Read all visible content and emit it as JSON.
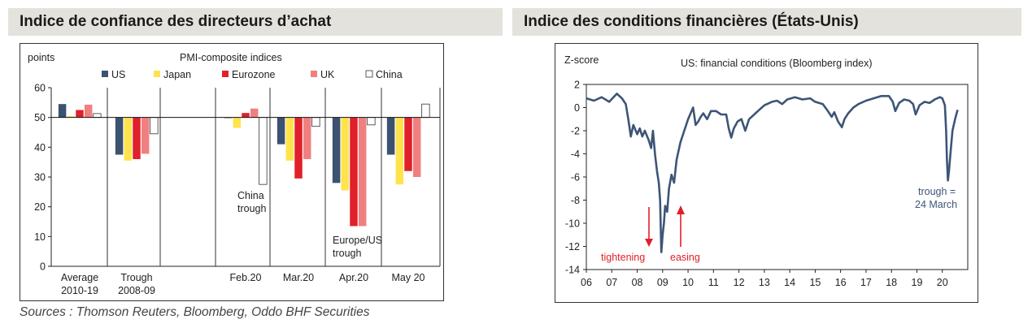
{
  "headers": {
    "left": "Indice de confiance des directeurs d’achat",
    "right": "Indice des conditions financières (États-Unis)"
  },
  "sources": "Sources : Thomson Reuters, Bloomberg, Oddo BHF Securities",
  "chart_data": [
    {
      "type": "bar",
      "title": "PMI-composite indices",
      "ylabel": "points",
      "ylim": [
        0,
        60
      ],
      "yticks": [
        0,
        10,
        20,
        30,
        40,
        50,
        60
      ],
      "baseline": 50,
      "categories": [
        "Average 2010-19",
        "Trough 2008-09",
        "Feb.20",
        "Mar.20",
        "Apr.20",
        "May 20"
      ],
      "category_lines": [
        [
          "Average",
          "2010-19"
        ],
        [
          "Trough",
          "2008-09"
        ],
        [
          "Feb.20"
        ],
        [
          "Mar.20"
        ],
        [
          "Apr.20"
        ],
        [
          "May 20"
        ]
      ],
      "series": [
        {
          "name": "US",
          "color": "#3b5270",
          "values": [
            54.5,
            37.5,
            49.8,
            41,
            28,
            37.5
          ]
        },
        {
          "name": "Japan",
          "color": "#ffe34d",
          "values": [
            50.5,
            35.5,
            46.5,
            35.5,
            25.5,
            27.5
          ]
        },
        {
          "name": "Eurozone",
          "color": "#e0202a",
          "values": [
            52.5,
            36,
            51.5,
            29.5,
            13.5,
            32
          ]
        },
        {
          "name": "UK",
          "color": "#f08080",
          "values": [
            54.3,
            37.8,
            53,
            36,
            13.5,
            30
          ]
        },
        {
          "name": "China",
          "color": "#ffffff",
          "values": [
            51.3,
            44.5,
            27.5,
            47,
            47.5,
            54.5
          ]
        }
      ],
      "annotations": [
        {
          "lines": [
            "China",
            "trough"
          ]
        },
        {
          "lines": [
            "Europe/US",
            "trough"
          ]
        }
      ],
      "legend_placement": "top",
      "grid": false
    },
    {
      "type": "line",
      "title": "US: financial conditions (Bloomberg index)",
      "ylabel": "Z-score",
      "ylim": [
        -14,
        2
      ],
      "yticks": [
        2,
        0,
        -2,
        -4,
        -6,
        -8,
        -10,
        -12,
        -14
      ],
      "xlim": [
        2006,
        2021
      ],
      "xticks": [
        "06",
        "07",
        "08",
        "09",
        "10",
        "11",
        "12",
        "13",
        "14",
        "15",
        "16",
        "17",
        "18",
        "19",
        "20"
      ],
      "series": [
        {
          "color": "#3d5577",
          "x": [
            2006.0,
            2006.3,
            2006.6,
            2006.9,
            2007.2,
            2007.4,
            2007.55,
            2007.65,
            2007.75,
            2007.85,
            2008.0,
            2008.1,
            2008.2,
            2008.3,
            2008.45,
            2008.55,
            2008.62,
            2008.7,
            2008.78,
            2008.85,
            2008.9,
            2008.95,
            2009.0,
            2009.05,
            2009.1,
            2009.18,
            2009.25,
            2009.35,
            2009.45,
            2009.55,
            2009.7,
            2009.85,
            2010.0,
            2010.1,
            2010.2,
            2010.3,
            2010.4,
            2010.5,
            2010.6,
            2010.75,
            2010.9,
            2011.1,
            2011.3,
            2011.5,
            2011.6,
            2011.7,
            2011.8,
            2011.95,
            2012.1,
            2012.25,
            2012.4,
            2012.6,
            2012.8,
            2013.0,
            2013.3,
            2013.5,
            2013.7,
            2013.9,
            2014.2,
            2014.5,
            2014.8,
            2015.0,
            2015.3,
            2015.5,
            2015.65,
            2015.75,
            2015.9,
            2016.05,
            2016.15,
            2016.3,
            2016.5,
            2016.7,
            2017.0,
            2017.3,
            2017.6,
            2017.9,
            2018.05,
            2018.15,
            2018.3,
            2018.5,
            2018.7,
            2018.85,
            2018.95,
            2019.1,
            2019.3,
            2019.5,
            2019.7,
            2019.9,
            2020.0,
            2020.1,
            2020.15,
            2020.18,
            2020.22,
            2020.26,
            2020.32,
            2020.4,
            2020.5,
            2020.6
          ],
          "y": [
            0.8,
            0.6,
            0.9,
            0.5,
            1.2,
            0.8,
            0.3,
            -1.0,
            -2.5,
            -1.5,
            -2.3,
            -1.8,
            -2.5,
            -2.0,
            -2.8,
            -3.5,
            -2.0,
            -4.0,
            -5.5,
            -6.5,
            -8.0,
            -12.5,
            -11.0,
            -10.0,
            -8.5,
            -9.0,
            -7.0,
            -5.8,
            -6.5,
            -4.5,
            -3.0,
            -2.0,
            -1.0,
            -0.5,
            0.0,
            -1.5,
            -1.2,
            -0.8,
            -0.5,
            -1.0,
            -0.3,
            -0.3,
            -0.6,
            -0.6,
            -1.8,
            -2.6,
            -1.8,
            -1.2,
            -1.0,
            -2.0,
            -1.0,
            -0.6,
            -0.2,
            0.2,
            0.5,
            0.6,
            0.3,
            0.7,
            0.9,
            0.7,
            0.8,
            0.5,
            0.3,
            -0.3,
            -0.8,
            -0.4,
            -1.2,
            -1.7,
            -1.0,
            -0.5,
            0.0,
            0.3,
            0.6,
            0.8,
            1.0,
            1.0,
            0.5,
            -0.3,
            0.4,
            0.7,
            0.6,
            0.3,
            -0.6,
            0.2,
            0.5,
            0.4,
            0.7,
            0.9,
            0.8,
            0.2,
            -2.0,
            -4.5,
            -6.3,
            -5.5,
            -4.0,
            -2.0,
            -1.0,
            -0.2
          ]
        }
      ],
      "annotations": [
        {
          "lines": [
            "trough =",
            "24 March"
          ]
        },
        {
          "text": "tightening",
          "color": "#e0202a"
        },
        {
          "text": "easing",
          "color": "#e0202a"
        }
      ],
      "grid": false
    }
  ]
}
